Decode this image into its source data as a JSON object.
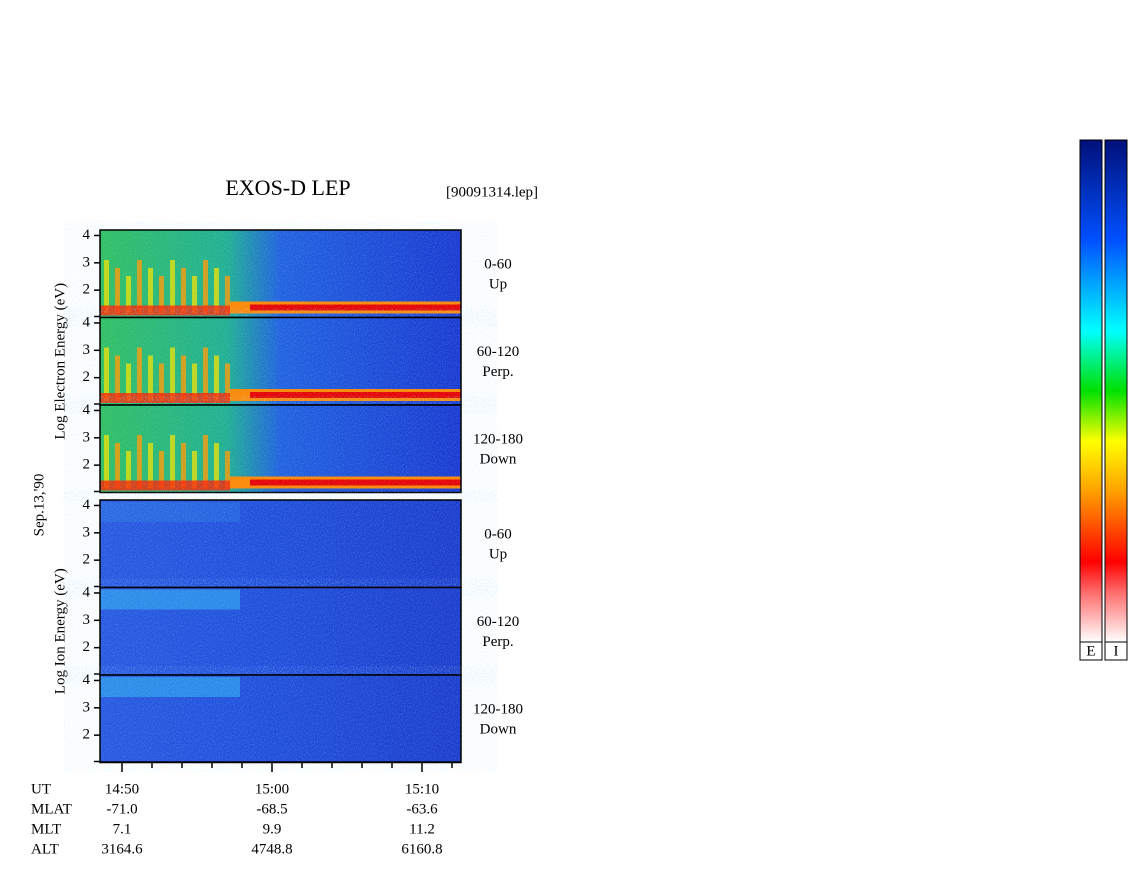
{
  "title": "EXOS-D LEP",
  "file": "[90091314.lep]",
  "date_label": "Sep.13,'90",
  "ylim": [
    1,
    4.2
  ],
  "yticks": [
    2,
    3,
    4
  ],
  "groups": [
    {
      "label": "Log  Electron  Energy (eV)",
      "panels": [
        {
          "range": "0-60",
          "direction": "Up"
        },
        {
          "range": "60-120",
          "direction": "Perp."
        },
        {
          "range": "120-180",
          "direction": "Down"
        }
      ]
    },
    {
      "label": "Log  Ion  Energy (eV)",
      "panels": [
        {
          "range": "0-60",
          "direction": "Up"
        },
        {
          "range": "60-120",
          "direction": "Perp."
        },
        {
          "range": "120-180",
          "direction": "Down"
        }
      ]
    }
  ],
  "ephemeris": {
    "labels": [
      "UT",
      "MLAT",
      "MLT",
      "ALT"
    ],
    "rows": [
      [
        "14:50",
        "15:00",
        "15:10"
      ],
      [
        "-71.0",
        "-68.5",
        "-63.6"
      ],
      [
        "7.1",
        "9.9",
        "11.2"
      ],
      [
        "3164.6",
        "4748.8",
        "6160.8"
      ]
    ]
  },
  "colorbars": [
    "E",
    "I"
  ]
}
